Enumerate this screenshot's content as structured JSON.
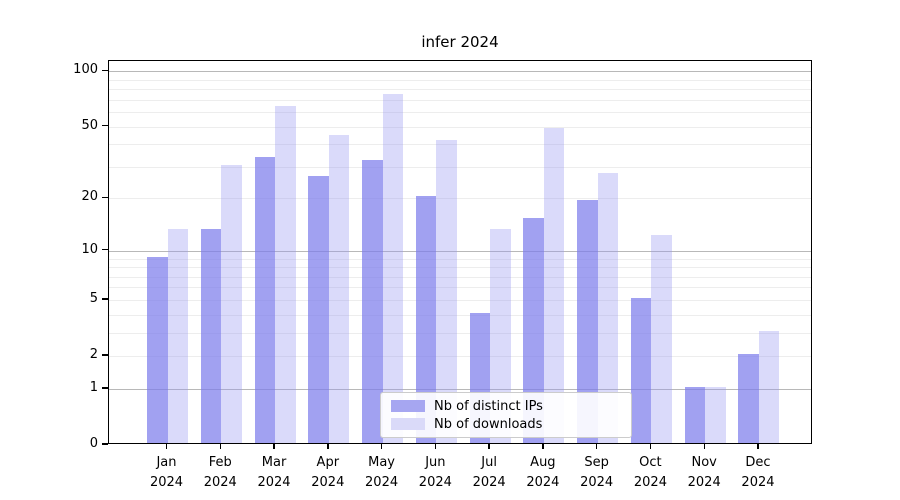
{
  "chart_data": {
    "type": "bar",
    "title": "infer 2024",
    "categories": [
      "Jan 2024",
      "Feb 2024",
      "Mar 2024",
      "Apr 2024",
      "May 2024",
      "Jun 2024",
      "Jul 2024",
      "Aug 2024",
      "Sep 2024",
      "Oct 2024",
      "Nov 2024",
      "Dec 2024"
    ],
    "month_labels": [
      "Jan",
      "Feb",
      "Mar",
      "Apr",
      "May",
      "Jun",
      "Jul",
      "Aug",
      "Sep",
      "Oct",
      "Nov",
      "Dec"
    ],
    "year_label": "2024",
    "series": [
      {
        "name": "Nb of distinct IPs",
        "color": "rgba(125,125,235,0.72)",
        "legend_color": "#a6a6f1",
        "values": [
          9,
          13,
          33,
          26,
          32,
          20,
          4,
          15,
          19,
          5,
          1,
          2
        ]
      },
      {
        "name": "Nb of downloads",
        "color": "rgba(150,150,240,0.35)",
        "legend_color": "#dadaf9",
        "values": [
          13,
          30,
          63,
          44,
          73,
          41,
          13,
          48,
          27,
          12,
          1,
          3
        ]
      }
    ],
    "yticks": [
      100,
      50,
      20,
      10,
      5,
      2,
      1,
      0
    ],
    "major_gridlines": [
      1,
      10,
      100
    ],
    "minor_gridlines": [
      2,
      3,
      4,
      5,
      6,
      7,
      8,
      9,
      20,
      30,
      40,
      50,
      60,
      70,
      80,
      90
    ],
    "scale": "log10(1+v)",
    "ylim": [
      0,
      113.6
    ],
    "grid": true,
    "legend_position": "lower center",
    "xlabel": "",
    "ylabel": ""
  }
}
